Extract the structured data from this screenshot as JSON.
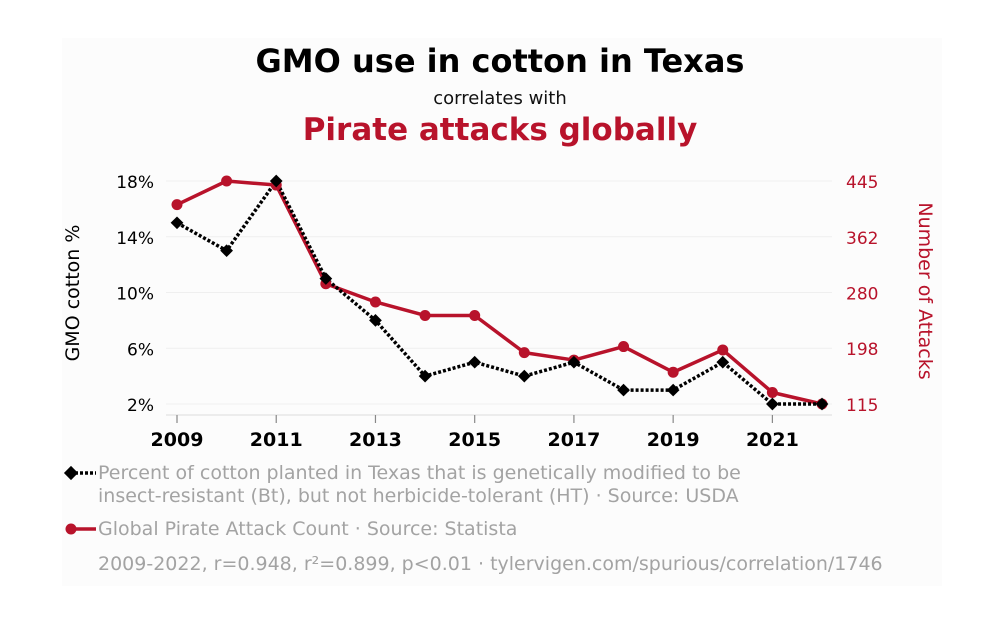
{
  "header": {
    "title": "GMO use in cotton in Texas",
    "subtitle": "correlates with",
    "second_title": "Pirate attacks globally"
  },
  "colors": {
    "series1": "#000000",
    "series2": "#b8132b",
    "muted": "#a3a3a3"
  },
  "chart_data": {
    "type": "line",
    "x": [
      2009,
      2010,
      2011,
      2012,
      2013,
      2014,
      2015,
      2016,
      2017,
      2018,
      2019,
      2020,
      2021,
      2022
    ],
    "x_tick_labels": [
      "2009",
      "2011",
      "2013",
      "2015",
      "2017",
      "2019",
      "2021"
    ],
    "xlim": [
      2009,
      2022
    ],
    "left_axis": {
      "label": "GMO cotton %",
      "ylim": [
        2,
        18
      ],
      "ticks": [
        2,
        6,
        10,
        14,
        18
      ],
      "tick_labels": [
        "2%",
        "6%",
        "10%",
        "14%",
        "18%"
      ]
    },
    "right_axis": {
      "label": "Number of Attacks",
      "ylim": [
        115,
        445
      ],
      "ticks": [
        115,
        198,
        280,
        362,
        445
      ],
      "tick_labels": [
        "115",
        "198",
        "280",
        "362",
        "445"
      ]
    },
    "series": [
      {
        "name": "Percent of cotton planted in Texas that is genetically modified to be insect-resistant (Bt), but not herbicide-tolerant (HT) · Source: USDA",
        "axis": "left",
        "style": "dotted-diamond",
        "values": [
          15,
          13,
          18,
          11,
          8,
          4,
          5,
          4,
          5,
          3,
          3,
          5,
          2,
          2
        ]
      },
      {
        "name": "Global Pirate Attack Count · Source: Statista",
        "axis": "right",
        "style": "solid-circle",
        "values": [
          410,
          445,
          439,
          293,
          266,
          246,
          246,
          191,
          180,
          200,
          162,
          195,
          132,
          115
        ]
      }
    ]
  },
  "legend": {
    "series1_line1": "Percent of cotton planted in Texas that is genetically modified to be",
    "series1_line2": "insect-resistant (Bt), but not herbicide-tolerant (HT) · Source: USDA",
    "series2": "Global Pirate Attack Count · Source: Statista"
  },
  "footer": {
    "stats": "2009-2022, r=0.948, r²=0.899, p<0.01 · tylervigen.com/spurious/correlation/1746"
  }
}
